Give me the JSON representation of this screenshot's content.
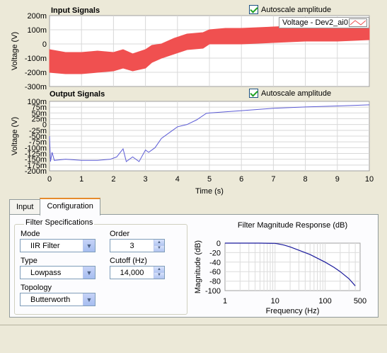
{
  "input_chart": {
    "title": "Input Signals",
    "autoscale_label": "Autoscale amplitude",
    "legend_label": "Voltage - Dev2_ai0",
    "ylabel": "Voltage (V)",
    "yticks": [
      "200m",
      "100m",
      "0",
      "-100m",
      "-200m",
      "-300m"
    ],
    "color": "#f05050"
  },
  "output_chart": {
    "title": "Output Signals",
    "autoscale_label": "Autoscale amplitude",
    "ylabel": "Voltage (V)",
    "xlabel": "Time (s)",
    "yticks": [
      "100m",
      "75m",
      "50m",
      "25m",
      "0",
      "-25m",
      "-50m",
      "-75m",
      "-100m",
      "-125m",
      "-150m",
      "-175m",
      "-200m"
    ],
    "xticks": [
      "0",
      "1",
      "2",
      "3",
      "4",
      "5",
      "6",
      "7",
      "8",
      "9",
      "10"
    ],
    "color": "#5c5cd6"
  },
  "tabs": [
    {
      "label": "Input",
      "active": false
    },
    {
      "label": "Configuration",
      "active": true
    }
  ],
  "filter_spec": {
    "group_label": "Filter Specifications",
    "mode_label": "Mode",
    "mode_value": "IIR Filter",
    "type_label": "Type",
    "type_value": "Lowpass",
    "topology_label": "Topology",
    "topology_value": "Butterworth",
    "order_label": "Order",
    "order_value": "3",
    "cutoff_label": "Cutoff (Hz)",
    "cutoff_value": "14,000"
  },
  "chart_data": [
    {
      "type": "line",
      "title": "Input Signals",
      "ylabel": "Voltage (V)",
      "xlabel": "",
      "xlim": [
        0,
        10
      ],
      "ylim": [
        -0.3,
        0.2
      ],
      "series": [
        {
          "name": "Voltage - Dev2_ai0",
          "style": "band",
          "x": [
            0,
            0.5,
            1,
            1.5,
            2,
            2.3,
            2.6,
            3.0,
            3.2,
            3.5,
            3.9,
            4.3,
            4.8,
            5.0,
            5.5,
            6.0,
            7.0,
            8.0,
            9.0,
            10
          ],
          "upper": [
            -0.04,
            -0.06,
            -0.06,
            -0.05,
            -0.06,
            -0.04,
            -0.07,
            -0.04,
            -0.01,
            0.0,
            0.04,
            0.07,
            0.08,
            0.1,
            0.11,
            0.11,
            0.12,
            0.13,
            0.13,
            0.13
          ],
          "lower": [
            -0.2,
            -0.21,
            -0.21,
            -0.2,
            -0.19,
            -0.17,
            -0.19,
            -0.17,
            -0.13,
            -0.1,
            -0.07,
            -0.04,
            -0.03,
            0.0,
            0.0,
            0.0,
            0.01,
            0.02,
            0.02,
            0.03
          ]
        }
      ]
    },
    {
      "type": "line",
      "title": "Output Signals",
      "ylabel": "Voltage (V)",
      "xlabel": "Time (s)",
      "xlim": [
        0,
        10
      ],
      "ylim": [
        -0.2,
        0.1
      ],
      "series": [
        {
          "x": [
            0,
            0.03,
            0.08,
            0.15,
            0.5,
            1.0,
            1.5,
            1.9,
            2.1,
            2.3,
            2.4,
            2.6,
            2.8,
            3.0,
            3.1,
            3.3,
            3.5,
            3.8,
            4.0,
            4.3,
            4.6,
            4.9,
            5.0,
            5.5,
            6.0,
            7.0,
            8.0,
            9.0,
            10
          ],
          "y": [
            -0.05,
            -0.16,
            -0.12,
            -0.155,
            -0.15,
            -0.155,
            -0.155,
            -0.15,
            -0.14,
            -0.105,
            -0.16,
            -0.14,
            -0.16,
            -0.11,
            -0.12,
            -0.1,
            -0.06,
            -0.03,
            -0.01,
            0.0,
            0.02,
            0.048,
            0.05,
            0.055,
            0.06,
            0.07,
            0.076,
            0.08,
            0.085
          ]
        }
      ]
    },
    {
      "type": "line",
      "title": "Filter Magnitude Response (dB)",
      "xlabel": "Frequency (Hz)",
      "ylabel": "Magnitude (dB)",
      "xscale": "log",
      "xlim": [
        1,
        500
      ],
      "ylim": [
        -100,
        0
      ],
      "xticks": [
        "1",
        "10",
        "100",
        "500"
      ],
      "yticks": [
        "0",
        "-20",
        "-40",
        "-60",
        "-80",
        "-100"
      ],
      "series": [
        {
          "x": [
            1,
            5,
            10,
            12,
            15,
            20,
            30,
            50,
            100,
            150,
            200,
            300,
            400
          ],
          "y": [
            0,
            0,
            -0.5,
            -2,
            -4,
            -8,
            -15,
            -24,
            -40,
            -51,
            -60,
            -75,
            -90
          ]
        }
      ]
    }
  ]
}
